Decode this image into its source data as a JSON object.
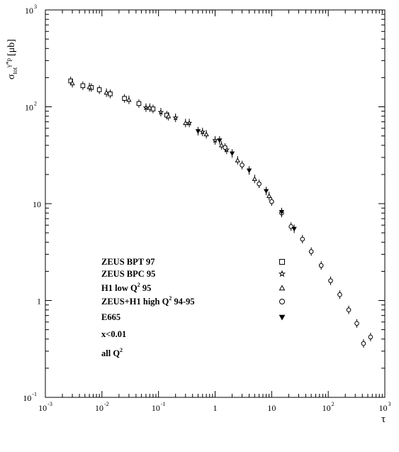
{
  "chart_data": {
    "type": "scatter",
    "title": "",
    "xlabel": "τ",
    "ylabel": {
      "base": "σ",
      "sub": "tot",
      "sup": "γ*p",
      "unit": "[μb]"
    },
    "x_scale": "log",
    "y_scale": "log",
    "xlim": [
      0.001,
      1000
    ],
    "ylim": [
      0.1,
      1000
    ],
    "grid": false,
    "legend_placement": "center-left",
    "x_ticks": [
      {
        "base": "10",
        "exp": "-3"
      },
      {
        "base": "10",
        "exp": "-2"
      },
      {
        "base": "10",
        "exp": "-1"
      },
      {
        "base": "1",
        "exp": ""
      },
      {
        "base": "10",
        "exp": ""
      },
      {
        "base": "10",
        "exp": "2"
      },
      {
        "base": "10",
        "exp": "3"
      }
    ],
    "y_ticks": [
      {
        "base": "10",
        "exp": "-1"
      },
      {
        "base": "1",
        "exp": ""
      },
      {
        "base": "10",
        "exp": ""
      },
      {
        "base": "10",
        "exp": "2"
      },
      {
        "base": "10",
        "exp": "3"
      }
    ],
    "legend": [
      {
        "text": "ZEUS BPT 97",
        "sup": "",
        "after": "",
        "marker": "open-square"
      },
      {
        "text": "ZEUS BPC 95",
        "sup": "",
        "after": "",
        "marker": "open-star"
      },
      {
        "text": "H1 low Q",
        "sup": "2",
        "after": " 95",
        "marker": "open-triangle"
      },
      {
        "text": "ZEUS+H1 high Q",
        "sup": "2",
        "after": " 94-95",
        "marker": "open-circle"
      },
      {
        "text": "E665",
        "sup": "",
        "after": "",
        "marker": "filled-triangle-down"
      }
    ],
    "annotations": [
      {
        "text": "x<0.01",
        "sup": "",
        "after": ""
      },
      {
        "text": "all Q",
        "sup": "2",
        "after": ""
      }
    ],
    "series": [
      {
        "marker": "open-square",
        "points": [
          [
            0.0028,
            185
          ],
          [
            0.0046,
            165
          ],
          [
            0.0065,
            158
          ],
          [
            0.009,
            150
          ],
          [
            0.014,
            136
          ],
          [
            0.025,
            122
          ],
          [
            0.045,
            108
          ],
          [
            0.08,
            95
          ],
          [
            0.14,
            82
          ]
        ]
      },
      {
        "marker": "open-star",
        "points": [
          [
            0.06,
            98
          ],
          [
            0.11,
            88
          ],
          [
            0.2,
            77
          ],
          [
            0.35,
            68
          ],
          [
            0.6,
            55
          ],
          [
            1.0,
            45
          ],
          [
            1.6,
            36
          ]
        ]
      },
      {
        "marker": "open-triangle",
        "points": [
          [
            0.003,
            175
          ],
          [
            0.006,
            160
          ],
          [
            0.012,
            140
          ],
          [
            0.03,
            118
          ],
          [
            0.07,
            98
          ],
          [
            0.15,
            80
          ],
          [
            0.3,
            68
          ],
          [
            0.7,
            52
          ],
          [
            1.3,
            40
          ],
          [
            2.5,
            28
          ],
          [
            5.0,
            18
          ],
          [
            9.0,
            12
          ]
        ]
      },
      {
        "marker": "open-circle",
        "points": [
          [
            1.5,
            38
          ],
          [
            3.0,
            25
          ],
          [
            6.0,
            16
          ],
          [
            10,
            10.5
          ],
          [
            15,
            8
          ],
          [
            22,
            5.8
          ],
          [
            35,
            4.3
          ],
          [
            50,
            3.2
          ],
          [
            75,
            2.3
          ],
          [
            110,
            1.6
          ],
          [
            160,
            1.15
          ],
          [
            230,
            0.8
          ],
          [
            320,
            0.58
          ],
          [
            420,
            0.36
          ],
          [
            560,
            0.42
          ]
        ]
      },
      {
        "marker": "filled-triangle-down",
        "points": [
          [
            0.5,
            56
          ],
          [
            1.2,
            45
          ],
          [
            2.0,
            33
          ],
          [
            4.0,
            22
          ],
          [
            8.0,
            13.5
          ],
          [
            15,
            8.2
          ],
          [
            25,
            5.5
          ]
        ]
      }
    ]
  }
}
